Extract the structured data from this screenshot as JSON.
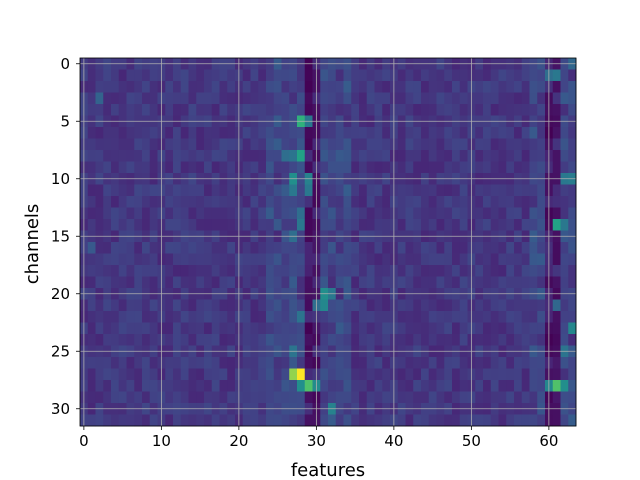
{
  "chart_data": {
    "type": "heatmap",
    "xlabel": "features",
    "ylabel": "channels",
    "n_cols": 64,
    "n_rows": 32,
    "xticks": [
      0,
      10,
      20,
      30,
      40,
      50,
      60
    ],
    "yticks": [
      0,
      5,
      10,
      15,
      20,
      25,
      30
    ],
    "xlim": [
      -0.5,
      63.5
    ],
    "ylim": [
      31.5,
      -0.5
    ],
    "grid": true,
    "colormap": "viridis",
    "colors": {
      "low": "#440154",
      "base": "#46327e",
      "mid": "#3b528b",
      "teal": "#21918c",
      "green": "#5ec962",
      "yellow": "#fde725",
      "grid": "#b0b0b0"
    },
    "hotspots": [
      {
        "col": 27,
        "row": 27,
        "value": 0.92
      },
      {
        "col": 28,
        "row": 27,
        "value": 1.0
      },
      {
        "col": 29,
        "row": 28,
        "value": 0.85
      },
      {
        "col": 28,
        "row": 28,
        "value": 0.62
      },
      {
        "col": 30,
        "row": 28,
        "value": 0.6
      },
      {
        "col": 61,
        "row": 28,
        "value": 0.85
      },
      {
        "col": 62,
        "row": 28,
        "value": 0.62
      },
      {
        "col": 60,
        "row": 28,
        "value": 0.58
      },
      {
        "col": 28,
        "row": 5,
        "value": 0.78
      },
      {
        "col": 29,
        "row": 5,
        "value": 0.5
      },
      {
        "col": 28,
        "row": 8,
        "value": 0.72
      },
      {
        "col": 27,
        "row": 8,
        "value": 0.48
      },
      {
        "col": 26,
        "row": 8,
        "value": 0.45
      },
      {
        "col": 27,
        "row": 10,
        "value": 0.62
      },
      {
        "col": 29,
        "row": 10,
        "value": 0.55
      },
      {
        "col": 27,
        "row": 11,
        "value": 0.5
      },
      {
        "col": 29,
        "row": 11,
        "value": 0.5
      },
      {
        "col": 28,
        "row": 14,
        "value": 0.5
      },
      {
        "col": 28,
        "row": 13,
        "value": 0.45
      },
      {
        "col": 27,
        "row": 15,
        "value": 0.45
      },
      {
        "col": 61,
        "row": 14,
        "value": 0.72
      },
      {
        "col": 62,
        "row": 14,
        "value": 0.5
      },
      {
        "col": 62,
        "row": 10,
        "value": 0.5
      },
      {
        "col": 63,
        "row": 10,
        "value": 0.52
      },
      {
        "col": 31,
        "row": 20,
        "value": 0.62
      },
      {
        "col": 32,
        "row": 20,
        "value": 0.5
      },
      {
        "col": 31,
        "row": 21,
        "value": 0.58
      },
      {
        "col": 30,
        "row": 21,
        "value": 0.45
      },
      {
        "col": 28,
        "row": 22,
        "value": 0.48
      },
      {
        "col": 27,
        "row": 25,
        "value": 0.48
      },
      {
        "col": 63,
        "row": 23,
        "value": 0.58
      },
      {
        "col": 62,
        "row": 25,
        "value": 0.48
      },
      {
        "col": 61,
        "row": 21,
        "value": 0.42
      },
      {
        "col": 60,
        "row": 1,
        "value": 0.45
      },
      {
        "col": 61,
        "row": 1,
        "value": 0.5
      },
      {
        "col": 63,
        "row": 0,
        "value": 0.42
      },
      {
        "col": 32,
        "row": 30,
        "value": 0.55
      },
      {
        "col": 2,
        "row": 3,
        "value": 0.4
      },
      {
        "col": 1,
        "row": 16,
        "value": 0.35
      }
    ],
    "dark_columns": [
      {
        "col": 29,
        "value": 0.0
      },
      {
        "col": 30,
        "value": 0.02
      },
      {
        "col": 60,
        "value": 0.0
      },
      {
        "col": 61,
        "value": 0.03
      }
    ]
  }
}
